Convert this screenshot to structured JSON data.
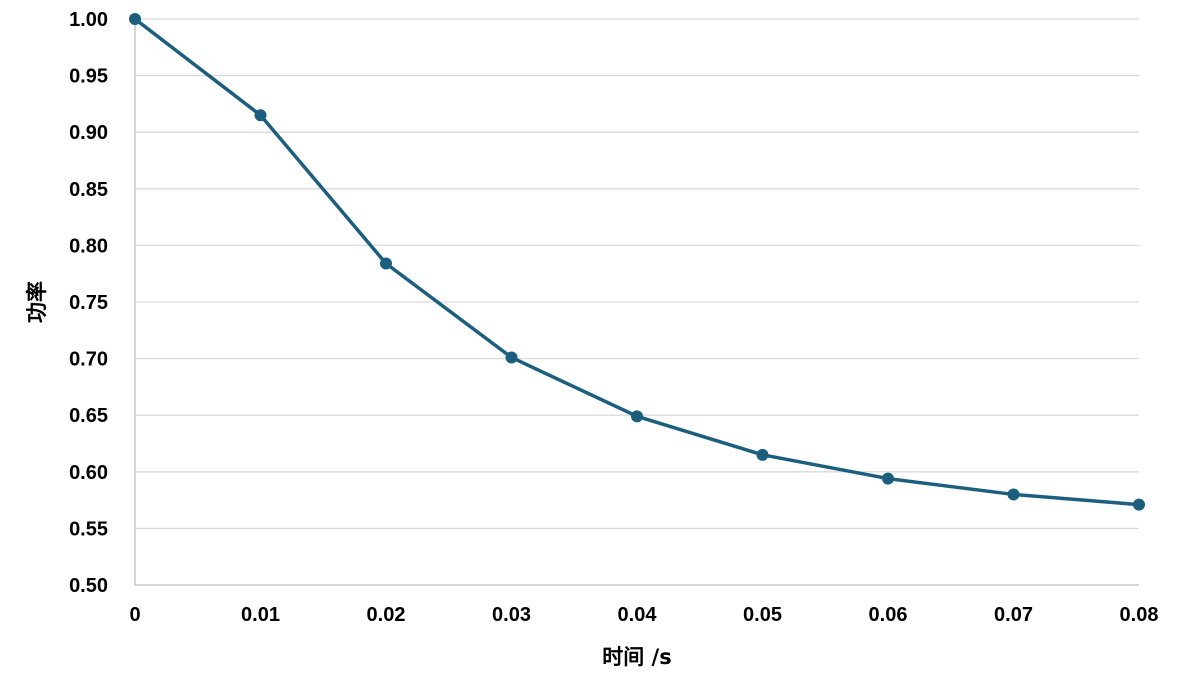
{
  "chart_data": {
    "type": "line",
    "title": "",
    "xlabel": "时间 /s",
    "ylabel": "功率",
    "x": [
      0,
      0.01,
      0.02,
      0.03,
      0.04,
      0.05,
      0.06,
      0.07,
      0.08
    ],
    "x_tick_labels": [
      "0",
      "0.01",
      "0.02",
      "0.03",
      "0.04",
      "0.05",
      "0.06",
      "0.07",
      "0.08"
    ],
    "y_tick_labels": [
      "0.50",
      "0.55",
      "0.60",
      "0.65",
      "0.70",
      "0.75",
      "0.80",
      "0.85",
      "0.90",
      "0.95",
      "1.00"
    ],
    "y_ticks": [
      0.5,
      0.55,
      0.6,
      0.65,
      0.7,
      0.75,
      0.8,
      0.85,
      0.9,
      0.95,
      1.0
    ],
    "ylim": [
      0.5,
      1.0
    ],
    "xlim": [
      0,
      0.08
    ],
    "grid": "horizontal",
    "series": [
      {
        "values": [
          1.0,
          0.915,
          0.784,
          0.701,
          0.649,
          0.615,
          0.594,
          0.58,
          0.571
        ],
        "color": "#1b5e7e",
        "marker": "circle"
      }
    ]
  }
}
